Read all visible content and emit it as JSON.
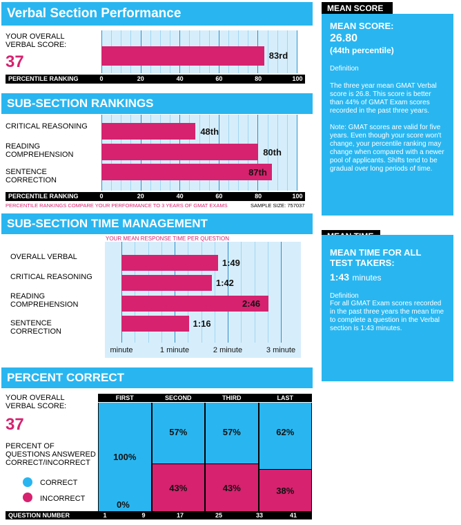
{
  "verbal": {
    "title": "Verbal Section Performance",
    "score_label": "YOUR OVERALL VERBAL SCORE:",
    "score": "37",
    "bar_value": 83,
    "bar_label": "83rd",
    "axis_label": "PERCENTILE RANKING",
    "ticks": [
      "0",
      "20",
      "40",
      "60",
      "80",
      "100"
    ]
  },
  "subsection": {
    "title": "SUB-SECTION RANKINGS",
    "rows": [
      {
        "label": "CRITICAL REASONING",
        "value": 48,
        "value_label": "48th"
      },
      {
        "label": "READING COMPREHENSION",
        "value": 80,
        "value_label": "80th"
      },
      {
        "label": "SENTENCE CORRECTION",
        "value": 87,
        "value_label": "87th"
      }
    ],
    "axis_label": "PERCENTILE RANKING",
    "ticks": [
      "0",
      "20",
      "40",
      "60",
      "80",
      "100"
    ],
    "note": "PERCENTILE RANKINGS COMPARE YOUR PERFORMANCE TO 3 YEARS OF GMAT EXAMS",
    "sample": "SAMPLE SIZE: 757037"
  },
  "time": {
    "title": "SUB-SECTION TIME MANAGEMENT",
    "subtitle": "YOUR MEAN RESPONSE TIME PER QUESTION",
    "rows": [
      {
        "label": "OVERALL VERBAL",
        "seconds": 109,
        "value_label": "1:49"
      },
      {
        "label": "CRITICAL REASONING",
        "seconds": 102,
        "value_label": "1:42"
      },
      {
        "label": "READING COMPREHENSION",
        "seconds": 166,
        "value_label": "2:46"
      },
      {
        "label": "SENTENCE CORRECTION",
        "seconds": 76,
        "value_label": "1:16"
      }
    ],
    "ticks": [
      "minute",
      "1 minute",
      "2 minute",
      "3 minute"
    ]
  },
  "percent": {
    "title": "PERCENT CORRECT",
    "score_label": "YOUR OVERALL VERBAL SCORE:",
    "score": "37",
    "desc": "PERCENT OF QUESTIONS ANSWERED CORRECT/INCORRECT",
    "legend_correct": "CORRECT",
    "legend_incorrect": "INCORRECT",
    "columns": [
      {
        "name": "FIRST",
        "correct": 100,
        "incorrect": 0,
        "correct_label": "100%",
        "incorrect_label": "0%"
      },
      {
        "name": "SECOND",
        "correct": 57,
        "incorrect": 43,
        "correct_label": "57%",
        "incorrect_label": "43%"
      },
      {
        "name": "THIRD",
        "correct": 57,
        "incorrect": 43,
        "correct_label": "57%",
        "incorrect_label": "43%"
      },
      {
        "name": "LAST",
        "correct": 62,
        "incorrect": 38,
        "correct_label": "62%",
        "incorrect_label": "38%"
      }
    ],
    "qn_label": "QUESTION NUMBER",
    "qn_ticks": [
      "1",
      "9",
      "17",
      "25",
      "33",
      "41"
    ]
  },
  "mean_score": {
    "tag": "MEAN SCORE",
    "headline": "MEAN SCORE:",
    "value": "26.80",
    "percentile": "(44th percentile)",
    "def_label": "Definition",
    "def_text": "The three year mean GMAT Verbal  score is 26.8. This score is better than 44% of GMAT Exam scores recorded in the past three years.",
    "note": "Note:  GMAT scores are valid for five years. Even though your score won't change, your percentile ranking may change when compared with a newer pool of applicants.  Shifts tend to be gradual over long periods of time."
  },
  "mean_time": {
    "tag": "MEAN TIME",
    "headline": "MEAN TIME FOR ALL TEST TAKERS:",
    "value": "1:43",
    "unit": "minutes",
    "def_label": "Definition",
    "def_text": "For all GMAT Exam scores recorded in the past three years the mean time to complete a question in the Verbal section is 1:43 minutes."
  },
  "colors": {
    "blue": "#29b6f0",
    "pink": "#d6226f",
    "pale": "#d6eefb"
  },
  "chart_data": [
    {
      "type": "bar",
      "title": "Verbal Section Performance",
      "categories": [
        "YOUR OVERALL VERBAL SCORE"
      ],
      "values": [
        83
      ],
      "xlabel": "PERCENTILE RANKING",
      "xlim": [
        0,
        100
      ]
    },
    {
      "type": "bar",
      "title": "SUB-SECTION RANKINGS",
      "categories": [
        "CRITICAL REASONING",
        "READING COMPREHENSION",
        "SENTENCE CORRECTION"
      ],
      "values": [
        48,
        80,
        87
      ],
      "xlabel": "PERCENTILE RANKING",
      "xlim": [
        0,
        100
      ]
    },
    {
      "type": "bar",
      "title": "SUB-SECTION TIME MANAGEMENT",
      "categories": [
        "OVERALL VERBAL",
        "CRITICAL REASONING",
        "READING COMPREHENSION",
        "SENTENCE CORRECTION"
      ],
      "values": [
        109,
        102,
        166,
        76
      ],
      "xlabel": "YOUR MEAN RESPONSE TIME PER QUESTION"
    },
    {
      "type": "bar",
      "title": "PERCENT CORRECT",
      "categories": [
        "FIRST",
        "SECOND",
        "THIRD",
        "LAST"
      ],
      "series": [
        {
          "name": "CORRECT",
          "values": [
            100,
            57,
            57,
            62
          ]
        },
        {
          "name": "INCORRECT",
          "values": [
            0,
            43,
            43,
            38
          ]
        }
      ],
      "xlabel": "QUESTION NUMBER",
      "ylim": [
        0,
        100
      ]
    }
  ]
}
